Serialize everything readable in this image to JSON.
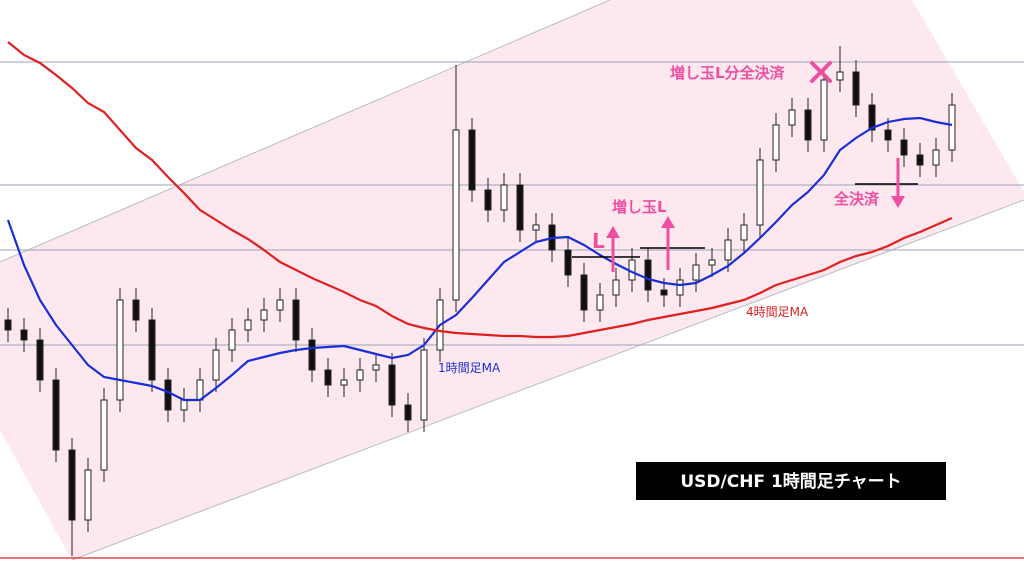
{
  "chart_data": {
    "type": "candlestick",
    "title": "USD/CHF  1時間足チャート",
    "ylim": [
      0,
      576
    ],
    "levels": [
      514,
      391,
      326,
      231
    ],
    "level_color": "#9aa3b5",
    "low_level": 18,
    "low_level_color": "#e02020",
    "ohlc": {
      "open": [
        256,
        246,
        236,
        196,
        126,
        56,
        106,
        176,
        276,
        256,
        196,
        166,
        176,
        196,
        226,
        246,
        256,
        266,
        276,
        236,
        206,
        191,
        196,
        206,
        211,
        171,
        156,
        226,
        276,
        446,
        386,
        366,
        391,
        346,
        351,
        326,
        301,
        266,
        281,
        296,
        316,
        286,
        281,
        296,
        311,
        316,
        336,
        351,
        416,
        451,
        466,
        436,
        496,
        504,
        471,
        446,
        436,
        421,
        411,
        426
      ],
      "high": [
        268,
        258,
        248,
        208,
        138,
        118,
        188,
        288,
        288,
        268,
        208,
        188,
        208,
        238,
        258,
        268,
        278,
        288,
        288,
        248,
        218,
        208,
        218,
        223,
        223,
        183,
        238,
        288,
        511,
        458,
        398,
        403,
        403,
        363,
        363,
        338,
        313,
        293,
        308,
        328,
        328,
        298,
        308,
        323,
        328,
        348,
        363,
        428,
        463,
        478,
        478,
        508,
        530,
        516,
        483,
        458,
        448,
        433,
        438,
        483
      ],
      "low": [
        234,
        224,
        184,
        114,
        20,
        44,
        94,
        164,
        244,
        184,
        154,
        154,
        164,
        184,
        214,
        234,
        244,
        254,
        224,
        194,
        179,
        179,
        184,
        194,
        159,
        144,
        144,
        214,
        264,
        374,
        354,
        354,
        334,
        334,
        314,
        289,
        254,
        254,
        269,
        284,
        274,
        269,
        269,
        284,
        299,
        304,
        324,
        339,
        404,
        439,
        424,
        424,
        484,
        459,
        434,
        424,
        409,
        399,
        399,
        414
      ],
      "close": [
        246,
        236,
        196,
        126,
        56,
        106,
        176,
        276,
        256,
        196,
        166,
        176,
        196,
        226,
        246,
        256,
        266,
        276,
        236,
        206,
        191,
        196,
        206,
        211,
        171,
        156,
        226,
        276,
        446,
        386,
        366,
        391,
        346,
        351,
        326,
        301,
        266,
        281,
        296,
        316,
        286,
        281,
        296,
        311,
        316,
        336,
        351,
        416,
        451,
        466,
        436,
        496,
        504,
        471,
        446,
        436,
        421,
        411,
        426,
        471
      ]
    },
    "series": [
      {
        "name": "1時間足MA",
        "color": "#1a2fd8",
        "values": [
          356,
          311,
          276,
          251,
          231,
          211,
          199,
          196,
          193,
          190,
          184,
          176,
          176,
          188,
          201,
          215,
          219,
          223,
          226,
          228,
          229,
          230,
          226,
          222,
          218,
          221,
          231,
          251,
          261,
          278,
          296,
          314,
          324,
          334,
          338,
          339,
          331,
          321,
          312,
          304,
          297,
          293,
          291,
          293,
          301,
          310,
          323,
          338,
          354,
          371,
          384,
          401,
          426,
          438,
          448,
          454,
          457,
          458,
          454,
          451
        ]
      },
      {
        "name": "4時間足MA",
        "color": "#e02020",
        "values": [
          534,
          521,
          513,
          501,
          488,
          473,
          464,
          446,
          428,
          416,
          399,
          383,
          366,
          356,
          346,
          337,
          326,
          314,
          306,
          298,
          291,
          284,
          276,
          270,
          260,
          252,
          248,
          245,
          243,
          242,
          241,
          240,
          240,
          239,
          239,
          240,
          243,
          246,
          249,
          252,
          256,
          259,
          262,
          265,
          268,
          272,
          276,
          283,
          291,
          296,
          301,
          306,
          314,
          320,
          324,
          330,
          338,
          344,
          351,
          358
        ]
      }
    ],
    "annotations": [
      "増し玉L分全決済",
      "増し玉L",
      "L",
      "全決済"
    ]
  }
}
